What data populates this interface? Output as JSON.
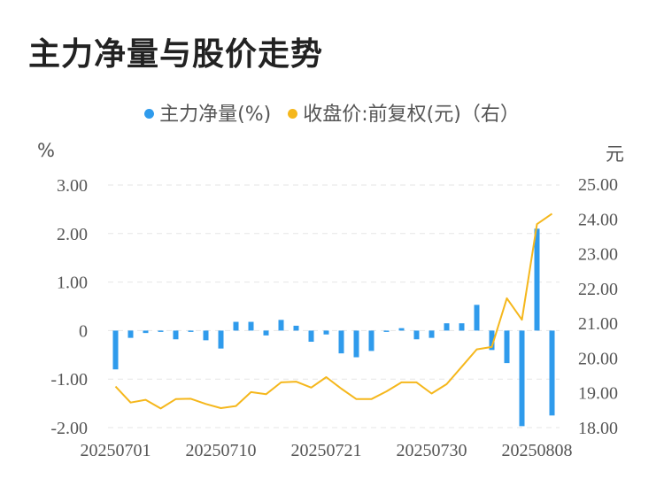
{
  "title": "主力净量与股价走势",
  "legend": {
    "bar_label": "主力净量(%)",
    "line_label": "收盘价:前复权(元)（右）"
  },
  "units": {
    "left": "%",
    "right": "元"
  },
  "colors": {
    "bar": "#2f9bec",
    "line": "#f5b71c",
    "grid": "#e6e6e6",
    "text": "#555555"
  },
  "chart_data": {
    "type": "bar",
    "x": [
      "20250701",
      "20250702",
      "20250703",
      "20250704",
      "20250707",
      "20250708",
      "20250709",
      "20250710",
      "20250711",
      "20250714",
      "20250715",
      "20250716",
      "20250717",
      "20250718",
      "20250721",
      "20250722",
      "20250723",
      "20250724",
      "20250725",
      "20250728",
      "20250729",
      "20250730",
      "20250731",
      "20250801",
      "20250804",
      "20250805",
      "20250806",
      "20250807",
      "20250808",
      "20250811"
    ],
    "xticks": [
      "20250701",
      "20250710",
      "20250721",
      "20250730",
      "20250808"
    ],
    "series": [
      {
        "name": "主力净量(%)",
        "axis": "left",
        "values": [
          -0.8,
          -0.15,
          -0.05,
          -0.02,
          -0.18,
          -0.02,
          -0.2,
          -0.37,
          0.18,
          0.18,
          -0.1,
          0.22,
          0.1,
          -0.23,
          -0.08,
          -0.47,
          -0.55,
          -0.42,
          -0.02,
          0.05,
          -0.18,
          -0.15,
          0.15,
          0.15,
          0.53,
          -0.4,
          -0.67,
          -1.97,
          2.1,
          -1.75
        ]
      },
      {
        "name": "收盘价:前复权(元)（右）",
        "axis": "right",
        "type": "line",
        "values": [
          19.18,
          18.72,
          18.8,
          18.55,
          18.82,
          18.83,
          18.68,
          18.56,
          18.62,
          19.02,
          18.96,
          19.3,
          19.32,
          19.15,
          19.45,
          19.12,
          18.82,
          18.82,
          19.04,
          19.3,
          19.3,
          18.98,
          19.25,
          19.75,
          20.25,
          20.32,
          21.72,
          21.1,
          23.85,
          24.15
        ]
      }
    ],
    "y_left": {
      "ticks": [
        "3.00",
        "2.00",
        "1.00",
        "0",
        "-1.00",
        "-2.00"
      ],
      "min": -2,
      "max": 3
    },
    "y_right": {
      "ticks": [
        "25.00",
        "24.00",
        "23.00",
        "22.00",
        "21.00",
        "20.00",
        "19.00",
        "18.00"
      ],
      "min": 18,
      "max": 25
    },
    "grid": true,
    "legend_position": "top-center"
  }
}
